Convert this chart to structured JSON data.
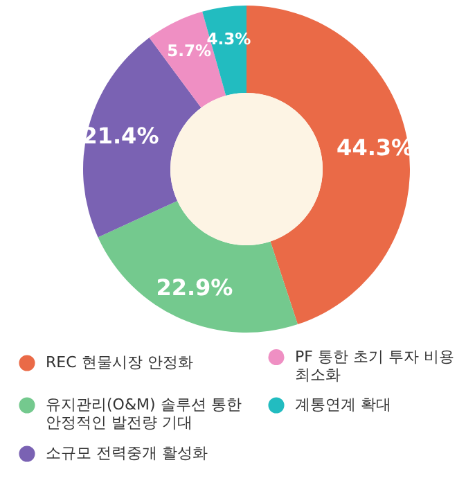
{
  "chart_data": {
    "type": "donut",
    "categories": [
      "REC 현물시장 안정화",
      "유지관리(O&M) 솔루션 통한 안정적인 발전량 기대",
      "소규모 전력중개 활성화",
      "PF 통한 초기 투자 비용 최소화",
      "계통연계 확대"
    ],
    "values": [
      44.3,
      22.9,
      21.4,
      5.7,
      4.3
    ],
    "value_labels": [
      "44.3%",
      "22.9%",
      "21.4%",
      "5.7%",
      "4.3%"
    ],
    "colors": [
      "#ea6a47",
      "#74c98e",
      "#7a62b3",
      "#ef8fc3",
      "#22bcc0"
    ],
    "legend": "bottom"
  }
}
